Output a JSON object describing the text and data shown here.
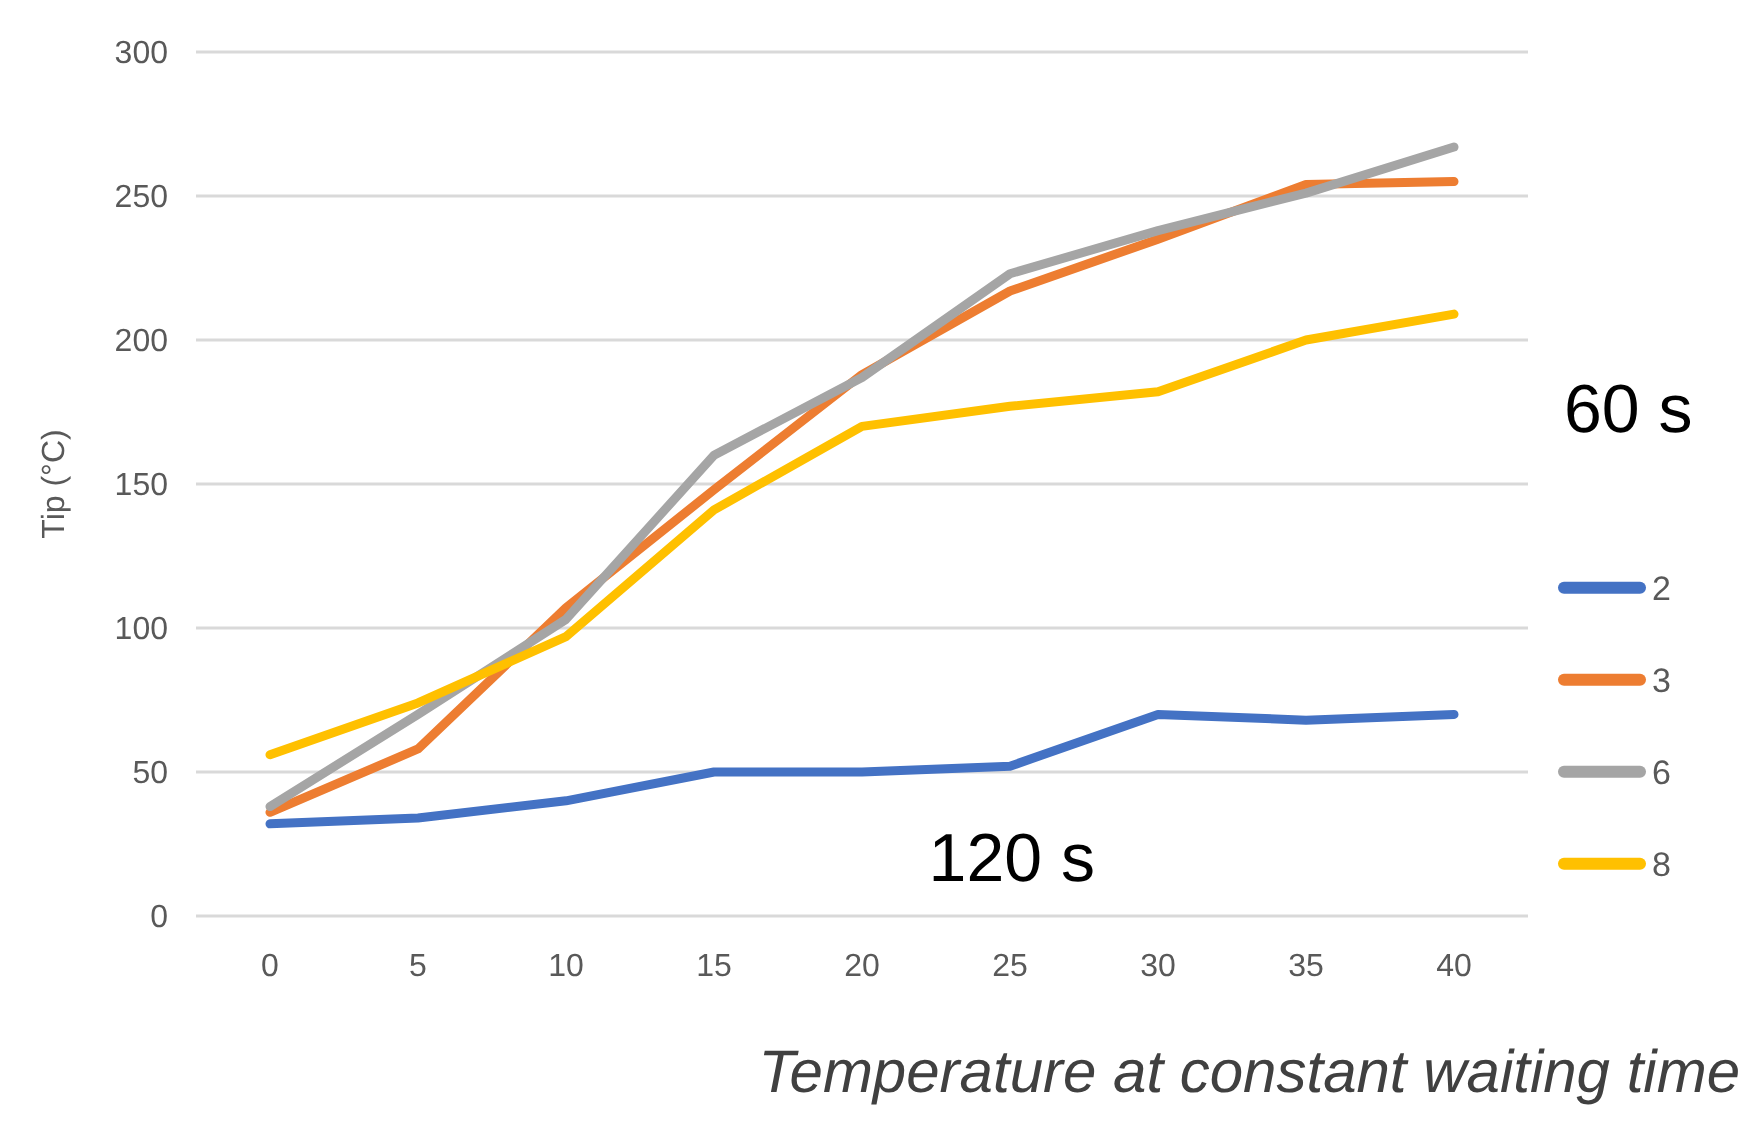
{
  "chart_data": {
    "type": "line",
    "ylabel": "Tip (°C)",
    "xlabel": "Temperature at constant waiting time",
    "categories": [
      "0",
      "5",
      "10",
      "15",
      "20",
      "25",
      "30",
      "35",
      "40"
    ],
    "series": [
      {
        "name": "2",
        "color": "#4472c4",
        "values": [
          32,
          34,
          40,
          50,
          50,
          52,
          70,
          68,
          70
        ]
      },
      {
        "name": "3",
        "color": "#ed7d31",
        "values": [
          36,
          58,
          107,
          148,
          188,
          217,
          235,
          254,
          255
        ]
      },
      {
        "name": "6",
        "color": "#a5a5a5",
        "values": [
          38,
          70,
          103,
          160,
          187,
          223,
          238,
          251,
          267
        ]
      },
      {
        "name": "8",
        "color": "#ffc000",
        "values": [
          56,
          74,
          97,
          141,
          170,
          177,
          182,
          200,
          209
        ]
      }
    ],
    "ylim": [
      0,
      300
    ],
    "yticks": [
      0,
      50,
      100,
      150,
      200,
      250,
      300
    ],
    "grid": "y",
    "legend": "right",
    "marker": "none",
    "line_style": "solid",
    "annotations": [
      "60 s",
      "120 s"
    ]
  }
}
